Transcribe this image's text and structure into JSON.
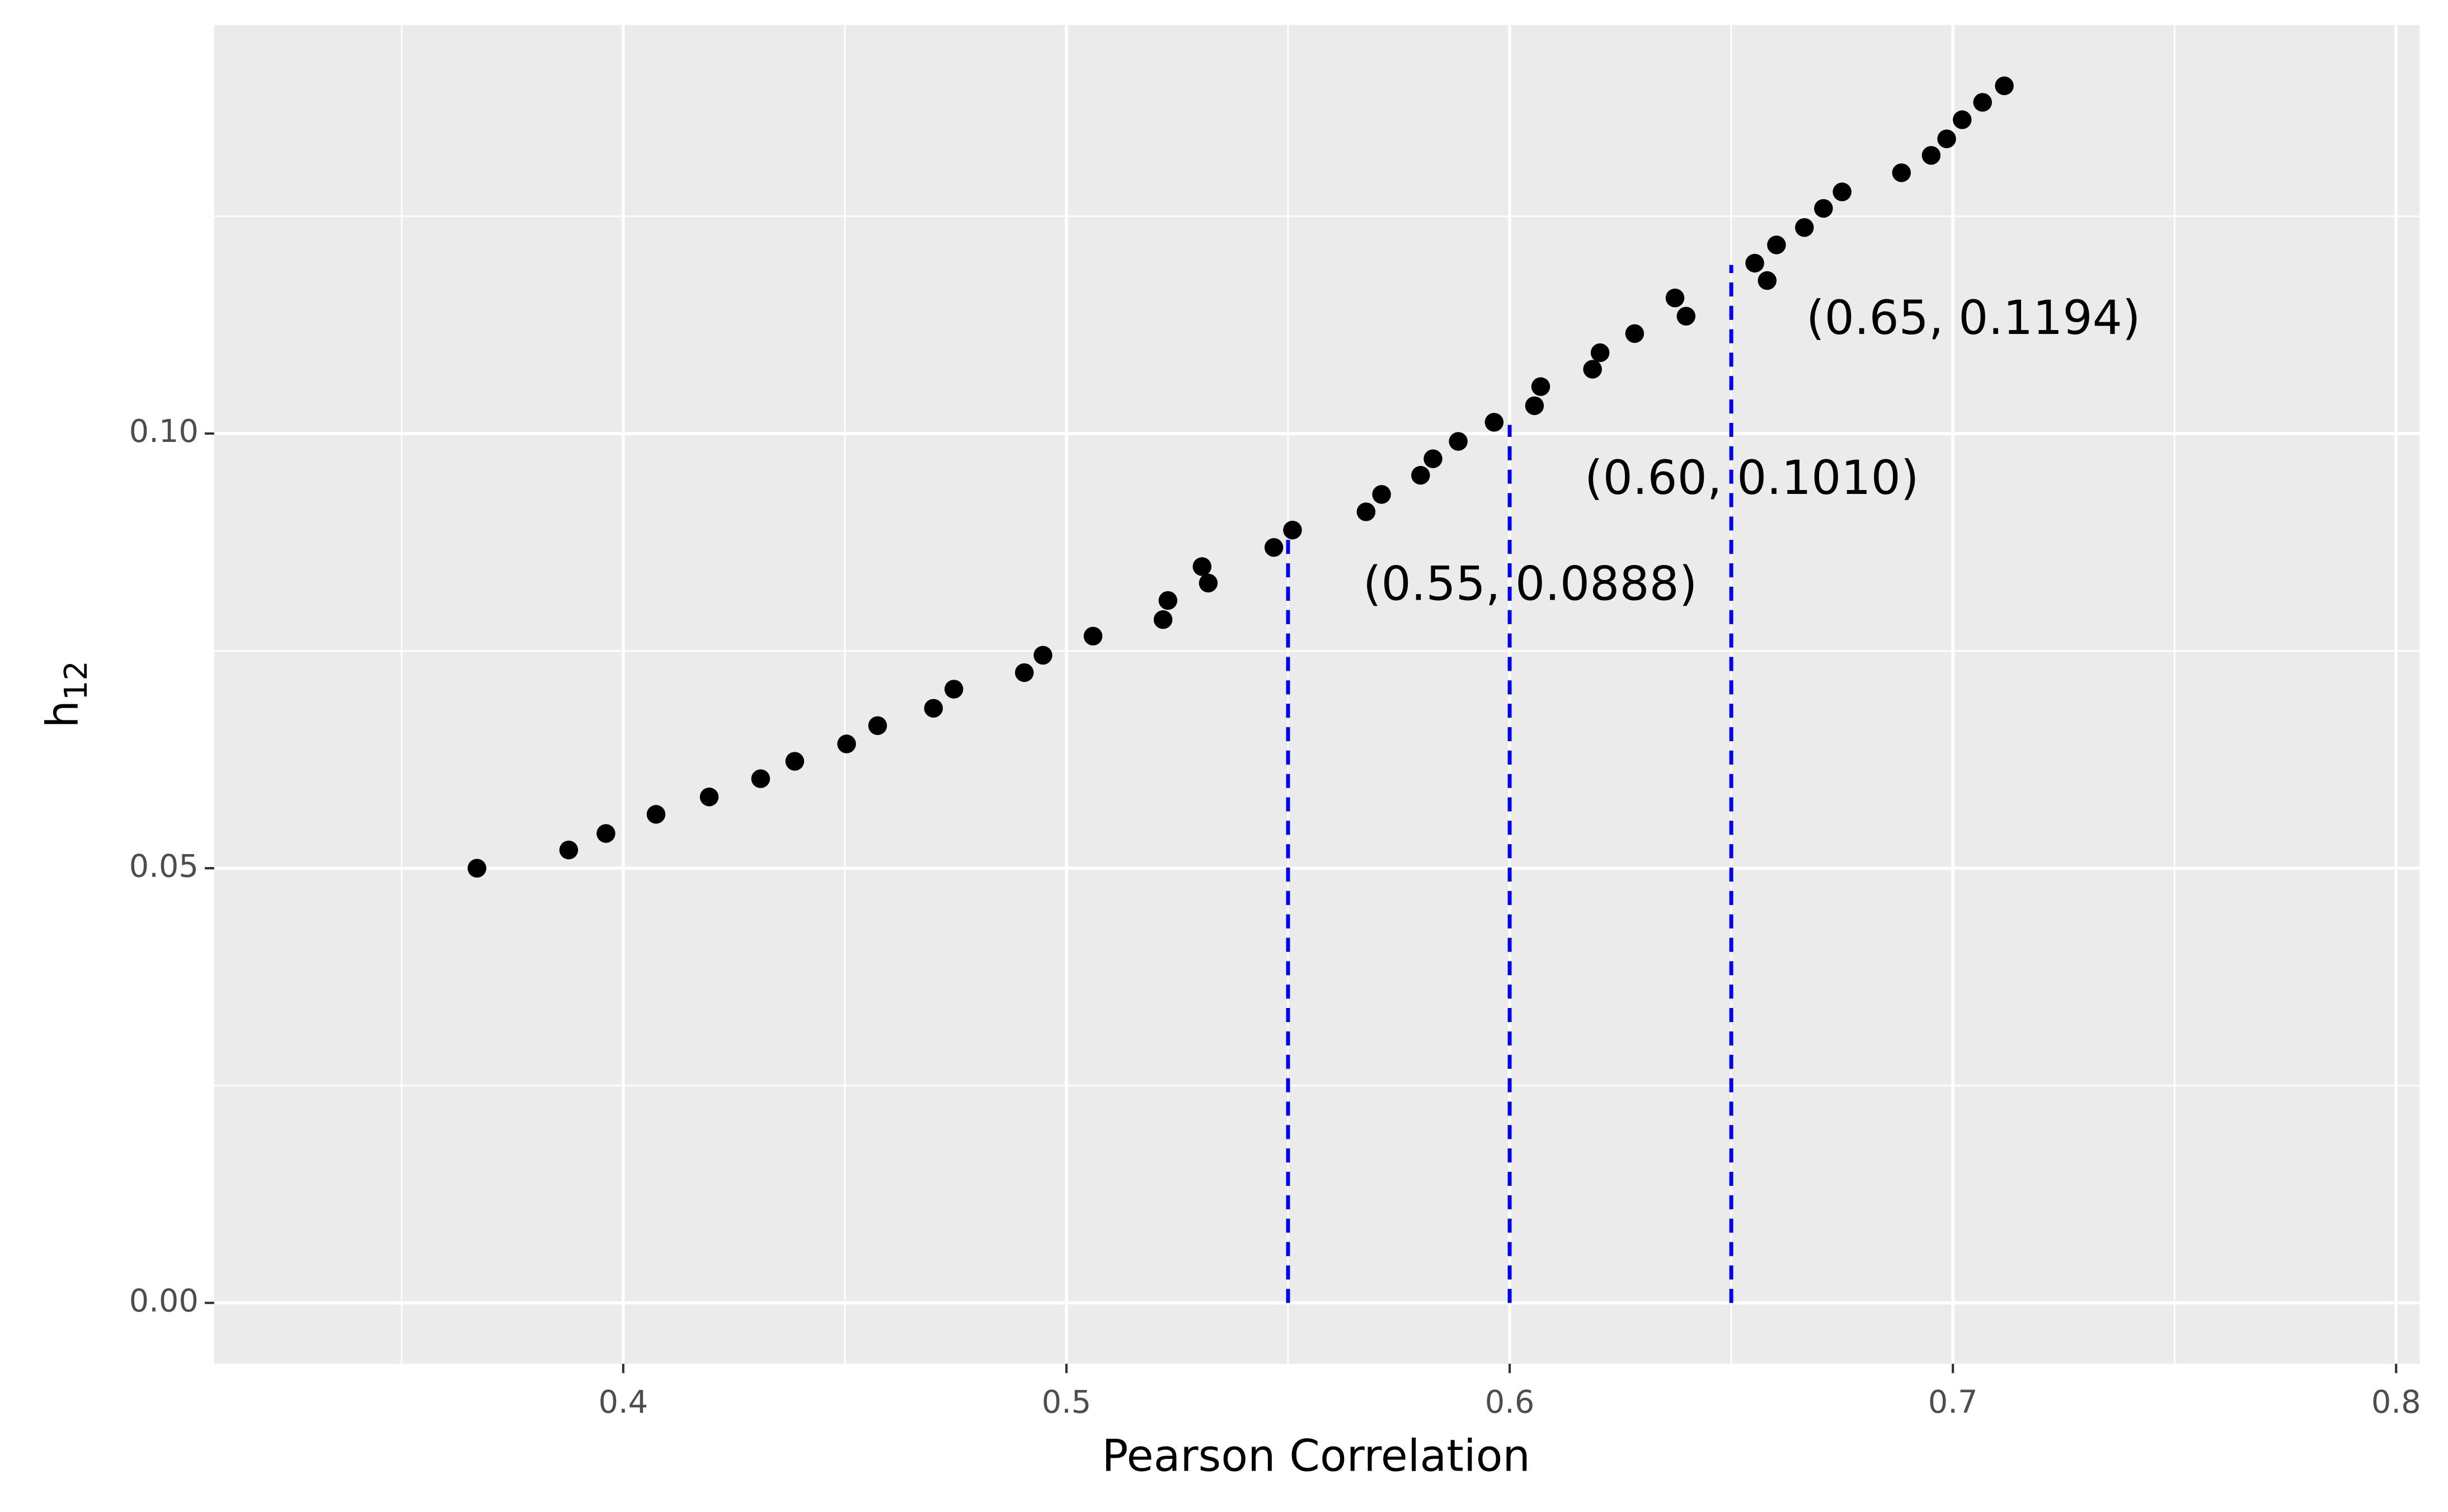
{
  "chart_data": {
    "type": "scatter",
    "xlabel": "Pearson Correlation",
    "ylabel": "h",
    "ylabel_subscript": "12",
    "x": [
      0.367,
      0.3877,
      0.3961,
      0.4074,
      0.4194,
      0.431,
      0.4387,
      0.4504,
      0.4574,
      0.47,
      0.4746,
      0.4905,
      0.4947,
      0.506,
      0.5218,
      0.5229,
      0.5306,
      0.532,
      0.5468,
      0.551,
      0.5676,
      0.5711,
      0.5799,
      0.5827,
      0.5884,
      0.5965,
      0.6056,
      0.607,
      0.6187,
      0.6204,
      0.6282,
      0.6373,
      0.6398,
      0.6553,
      0.6581,
      0.6602,
      0.6665,
      0.6708,
      0.675,
      0.6884,
      0.6951,
      0.6986,
      0.7021,
      0.7067,
      0.7116
    ],
    "values": [
      0.05,
      0.0521,
      0.054,
      0.0562,
      0.0582,
      0.0603,
      0.0623,
      0.0643,
      0.0664,
      0.0684,
      0.0706,
      0.0725,
      0.0745,
      0.0767,
      0.0786,
      0.0808,
      0.0847,
      0.0828,
      0.0869,
      0.0889,
      0.091,
      0.093,
      0.0952,
      0.0971,
      0.0991,
      0.1013,
      0.1032,
      0.1054,
      0.1074,
      0.1093,
      0.1115,
      0.1156,
      0.1135,
      0.1196,
      0.1176,
      0.1217,
      0.1237,
      0.1259,
      0.1278,
      0.13,
      0.132,
      0.1339,
      0.1361,
      0.1381,
      0.14
    ],
    "color": "#000000",
    "annotations": [
      {
        "x": 0.55,
        "y": 0.0888,
        "label": "(0.55, 0.0888)"
      },
      {
        "x": 0.6,
        "y": 0.101,
        "label": "(0.60, 0.1010)"
      },
      {
        "x": 0.65,
        "y": 0.1194,
        "label": "(0.65, 0.1194)"
      }
    ],
    "annotation_color": "#0000ee",
    "xlim": [
      0.3077,
      0.8053
    ],
    "ylim": [
      -0.007,
      0.147
    ],
    "xticks": [
      0.4,
      0.5,
      0.6,
      0.7,
      0.8
    ],
    "yticks": [
      {
        "value": 0,
        "label": "0.00"
      },
      {
        "value": 0.05,
        "label": "0.05"
      },
      {
        "value": 0.1,
        "label": "0.10"
      }
    ],
    "grid": true,
    "minor_grid": true
  }
}
